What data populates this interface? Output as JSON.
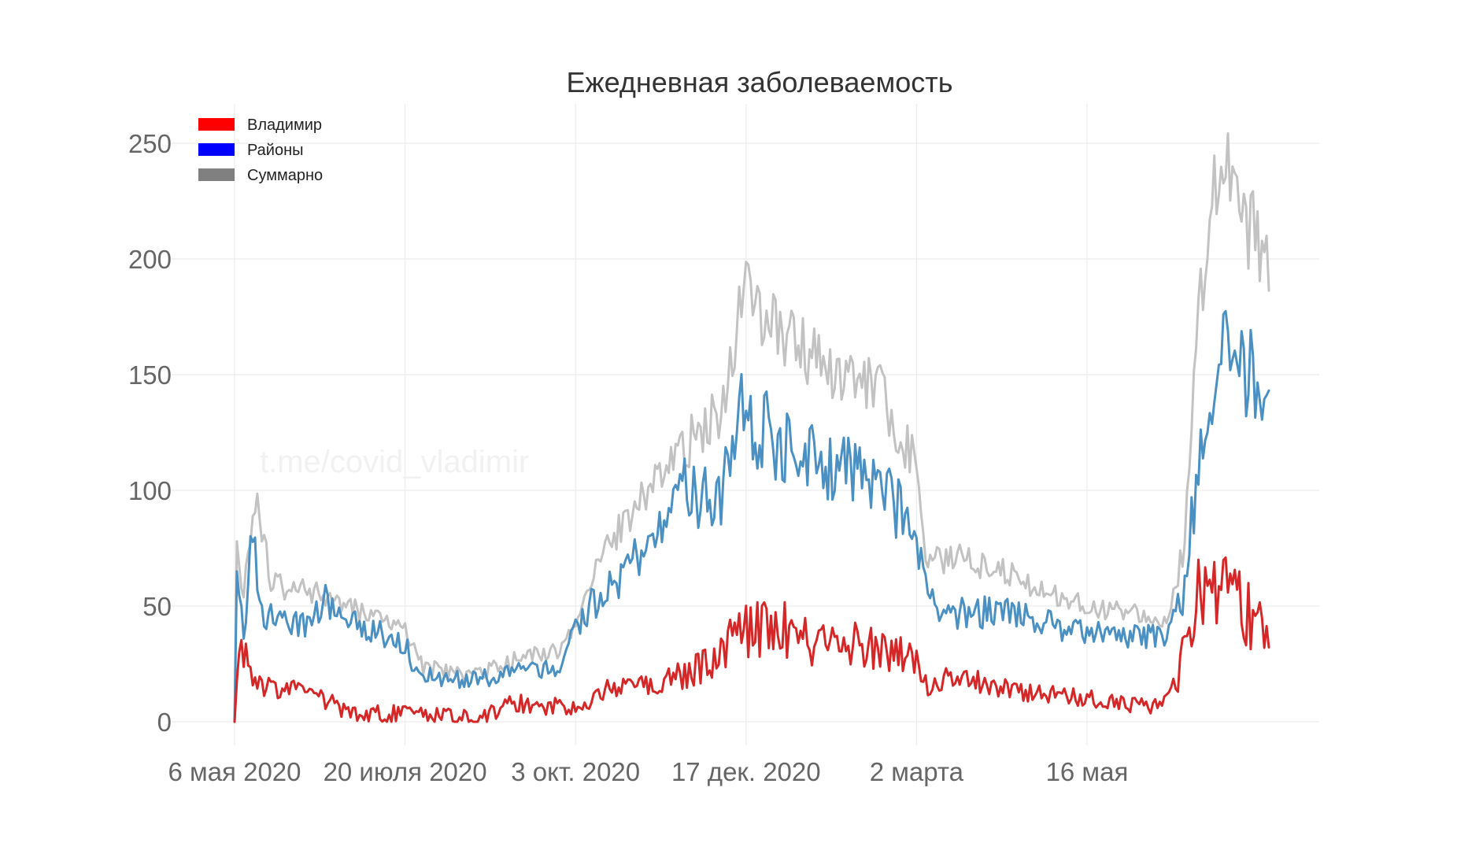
{
  "watermark": "t.me/covid_vladimir",
  "chart_data": {
    "type": "line",
    "title": "Ежедневная заболеваемость",
    "xlabel": "",
    "ylabel": "",
    "ylim": [
      -6,
      262
    ],
    "yticks": [
      0,
      50,
      100,
      150,
      200,
      250
    ],
    "x_start": "2020-05-06",
    "x_end": "2021-08-04",
    "x_step": "1 day",
    "xticks": [
      {
        "date": "2020-05-06",
        "label": "6 мая 2020"
      },
      {
        "date": "2020-07-20",
        "label": "20 июля 2020"
      },
      {
        "date": "2020-10-03",
        "label": "3 окт. 2020"
      },
      {
        "date": "2020-12-17",
        "label": "17 дек. 2020"
      },
      {
        "date": "2021-03-02",
        "label": "2 марта"
      },
      {
        "date": "2021-05-16",
        "label": "16 мая"
      }
    ],
    "grid": true,
    "legend_position": "top-left",
    "series": [
      {
        "name": "Владимир",
        "color": "#d62728",
        "legend_color": "#ff0000",
        "anchors": [
          {
            "date": "2020-05-06",
            "value": 0
          },
          {
            "date": "2020-05-08",
            "value": 35
          },
          {
            "date": "2020-05-18",
            "value": 18
          },
          {
            "date": "2020-06-10",
            "value": 14
          },
          {
            "date": "2020-06-25",
            "value": 6
          },
          {
            "date": "2020-07-20",
            "value": 5
          },
          {
            "date": "2020-08-20",
            "value": 3
          },
          {
            "date": "2020-09-05",
            "value": 10
          },
          {
            "date": "2020-10-03",
            "value": 8
          },
          {
            "date": "2020-10-20",
            "value": 18
          },
          {
            "date": "2020-11-15",
            "value": 22
          },
          {
            "date": "2020-12-01",
            "value": 30
          },
          {
            "date": "2020-12-17",
            "value": 47
          },
          {
            "date": "2021-01-01",
            "value": 50
          },
          {
            "date": "2021-01-10",
            "value": 42
          },
          {
            "date": "2021-02-05",
            "value": 40
          },
          {
            "date": "2021-03-01",
            "value": 36
          },
          {
            "date": "2021-03-06",
            "value": 18
          },
          {
            "date": "2021-03-20",
            "value": 22
          },
          {
            "date": "2021-04-15",
            "value": 15
          },
          {
            "date": "2021-05-16",
            "value": 12
          },
          {
            "date": "2021-06-15",
            "value": 9
          },
          {
            "date": "2021-06-25",
            "value": 20
          },
          {
            "date": "2021-07-02",
            "value": 62
          },
          {
            "date": "2021-07-15",
            "value": 72
          },
          {
            "date": "2021-07-28",
            "value": 50
          },
          {
            "date": "2021-08-04",
            "value": 55
          }
        ]
      },
      {
        "name": "Районы",
        "color": "#4a90c2",
        "legend_color": "#0000ff",
        "anchors": [
          {
            "date": "2020-05-06",
            "value": 0
          },
          {
            "date": "2020-05-07",
            "value": 65
          },
          {
            "date": "2020-05-10",
            "value": 40
          },
          {
            "date": "2020-05-14",
            "value": 88
          },
          {
            "date": "2020-05-18",
            "value": 50
          },
          {
            "date": "2020-06-05",
            "value": 45
          },
          {
            "date": "2020-06-15",
            "value": 58
          },
          {
            "date": "2020-06-25",
            "value": 47
          },
          {
            "date": "2020-07-20",
            "value": 37
          },
          {
            "date": "2020-07-25",
            "value": 22
          },
          {
            "date": "2020-08-20",
            "value": 20
          },
          {
            "date": "2020-09-10",
            "value": 24
          },
          {
            "date": "2020-09-25",
            "value": 25
          },
          {
            "date": "2020-10-05",
            "value": 48
          },
          {
            "date": "2020-10-20",
            "value": 65
          },
          {
            "date": "2020-11-05",
            "value": 83
          },
          {
            "date": "2020-11-20",
            "value": 108
          },
          {
            "date": "2020-12-05",
            "value": 103
          },
          {
            "date": "2020-12-14",
            "value": 146
          },
          {
            "date": "2020-12-25",
            "value": 135
          },
          {
            "date": "2021-01-05",
            "value": 125
          },
          {
            "date": "2021-01-25",
            "value": 118
          },
          {
            "date": "2021-02-15",
            "value": 108
          },
          {
            "date": "2021-03-01",
            "value": 90
          },
          {
            "date": "2021-03-08",
            "value": 58
          },
          {
            "date": "2021-03-13",
            "value": 50
          },
          {
            "date": "2021-04-10",
            "value": 51
          },
          {
            "date": "2021-05-16",
            "value": 41
          },
          {
            "date": "2021-06-20",
            "value": 39
          },
          {
            "date": "2021-06-28",
            "value": 60
          },
          {
            "date": "2021-07-05",
            "value": 135
          },
          {
            "date": "2021-07-12",
            "value": 172
          },
          {
            "date": "2021-07-18",
            "value": 188
          },
          {
            "date": "2021-07-24",
            "value": 160
          },
          {
            "date": "2021-08-04",
            "value": 155
          }
        ]
      },
      {
        "name": "Суммарно",
        "color": "#c2c2c2",
        "legend_color": "#808080",
        "anchors": [
          {
            "date": "2020-05-06",
            "value": 0
          },
          {
            "date": "2020-05-07",
            "value": 78
          },
          {
            "date": "2020-05-10",
            "value": 60
          },
          {
            "date": "2020-05-16",
            "value": 99
          },
          {
            "date": "2020-05-22",
            "value": 62
          },
          {
            "date": "2020-06-10",
            "value": 58
          },
          {
            "date": "2020-06-25",
            "value": 52
          },
          {
            "date": "2020-07-20",
            "value": 42
          },
          {
            "date": "2020-07-28",
            "value": 25
          },
          {
            "date": "2020-08-20",
            "value": 22
          },
          {
            "date": "2020-09-10",
            "value": 30
          },
          {
            "date": "2020-09-28",
            "value": 33
          },
          {
            "date": "2020-10-03",
            "value": 45
          },
          {
            "date": "2020-10-15",
            "value": 78
          },
          {
            "date": "2020-11-05",
            "value": 105
          },
          {
            "date": "2020-11-25",
            "value": 130
          },
          {
            "date": "2020-12-08",
            "value": 142
          },
          {
            "date": "2020-12-14",
            "value": 193
          },
          {
            "date": "2020-12-25",
            "value": 185
          },
          {
            "date": "2021-01-10",
            "value": 170
          },
          {
            "date": "2021-01-25",
            "value": 158
          },
          {
            "date": "2021-02-15",
            "value": 148
          },
          {
            "date": "2021-03-01",
            "value": 118
          },
          {
            "date": "2021-03-07",
            "value": 72
          },
          {
            "date": "2021-03-20",
            "value": 75
          },
          {
            "date": "2021-04-15",
            "value": 65
          },
          {
            "date": "2021-05-16",
            "value": 52
          },
          {
            "date": "2021-06-20",
            "value": 47
          },
          {
            "date": "2021-06-28",
            "value": 80
          },
          {
            "date": "2021-07-05",
            "value": 195
          },
          {
            "date": "2021-07-10",
            "value": 235
          },
          {
            "date": "2021-07-16",
            "value": 252
          },
          {
            "date": "2021-07-24",
            "value": 228
          },
          {
            "date": "2021-08-04",
            "value": 212
          }
        ]
      }
    ]
  }
}
